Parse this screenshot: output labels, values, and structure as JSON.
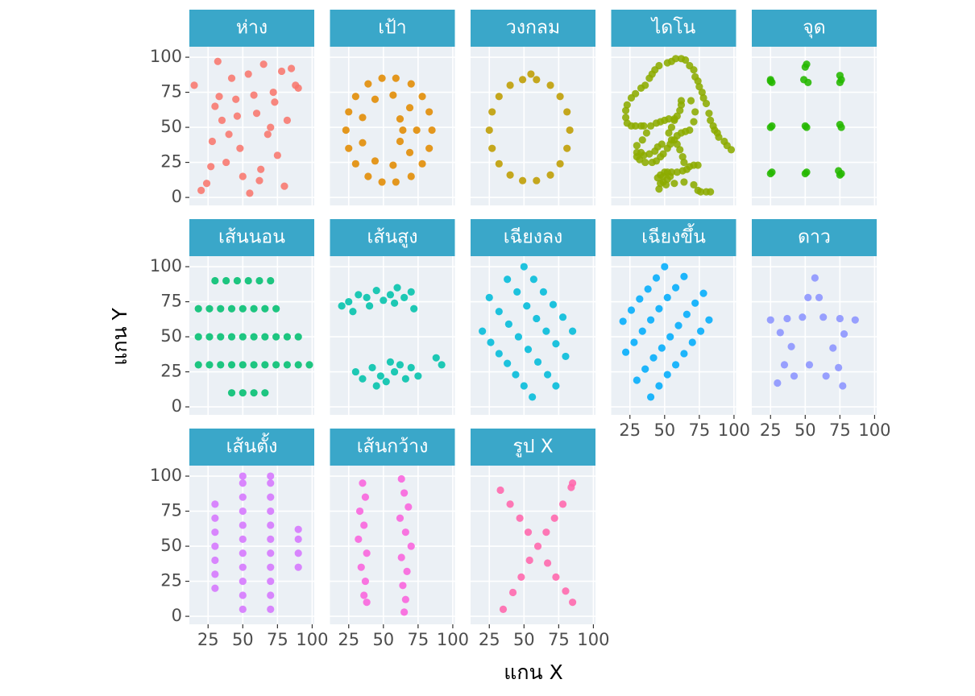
{
  "chart_data": {
    "type": "scatter",
    "facet_columns": 5,
    "x_label": "แกน X",
    "y_label": "แกน Y",
    "xlim": [
      11.5,
      101.5
    ],
    "ylim": [
      -5.7,
      107.5
    ],
    "xticks": [
      25,
      50,
      75,
      100
    ],
    "yticks": [
      0,
      25,
      50,
      75,
      100
    ],
    "grid": true,
    "series": [
      {
        "name": "ห่าง",
        "color": "#F8766D",
        "x": [
          32,
          54,
          20,
          65,
          78,
          45,
          88,
          28,
          60,
          72,
          38,
          15,
          82,
          50,
          68,
          24,
          42,
          75,
          58,
          35,
          90,
          63,
          30,
          48,
          80,
          70,
          27,
          55,
          40,
          85,
          33,
          62,
          46,
          73
        ],
        "values": [
          97,
          88,
          5,
          95,
          90,
          70,
          80,
          40,
          60,
          75,
          25,
          80,
          55,
          15,
          45,
          10,
          85,
          30,
          73,
          55,
          78,
          20,
          65,
          35,
          8,
          50,
          22,
          3,
          45,
          92,
          72,
          12,
          58,
          68
        ]
      },
      {
        "name": "เป้า",
        "color": "#E18A00",
        "x": [
          85,
          83,
          78,
          70,
          59,
          49,
          39,
          30,
          25,
          23,
          25,
          30,
          39,
          49,
          59,
          70,
          78,
          83,
          74,
          69,
          57,
          44,
          35,
          35,
          44,
          57,
          69,
          62,
          64,
          62
        ],
        "values": [
          48,
          61,
          72,
          81,
          85,
          85,
          81,
          72,
          61,
          48,
          35,
          24,
          15,
          11,
          11,
          15,
          24,
          35,
          48,
          64,
          73,
          70,
          57,
          39,
          26,
          23,
          32,
          56,
          48,
          40
        ]
      },
      {
        "name": "วงกลม",
        "color": "#BE9C00",
        "x": [
          83,
          81,
          76,
          69,
          59,
          49,
          40,
          32,
          27,
          25,
          27,
          32,
          40,
          49,
          59,
          69,
          76,
          81,
          55
        ],
        "values": [
          48,
          61,
          72,
          80,
          84,
          84,
          80,
          72,
          61,
          48,
          35,
          24,
          16,
          12,
          12,
          16,
          24,
          35,
          88
        ]
      },
      {
        "name": "ไดโน",
        "color": "#8CAB00",
        "x": [
          55,
          52,
          46,
          43,
          41,
          39,
          36,
          33,
          29,
          26,
          23,
          22,
          22,
          23,
          26,
          29,
          33,
          35,
          40,
          44,
          47,
          50,
          53,
          57,
          59,
          61,
          62,
          62,
          57,
          55,
          53,
          48,
          45,
          43,
          39,
          35,
          33,
          30,
          34,
          37,
          30,
          30,
          32,
          36,
          41,
          44,
          47,
          49,
          52,
          54,
          55,
          59,
          62,
          65,
          68,
          71,
          72,
          69,
          58,
          62,
          65,
          68,
          71,
          72,
          74,
          75,
          77,
          78,
          80,
          82,
          83,
          85,
          86,
          88,
          89,
          93,
          95,
          98,
          57,
          59,
          61,
          63,
          64,
          74,
          71,
          68,
          66,
          63,
          59,
          55,
          52,
          50,
          47,
          45,
          49,
          54,
          52,
          49,
          47,
          46,
          51,
          57,
          64,
          71,
          74,
          76,
          80,
          83
        ],
        "values": [
          97,
          96,
          94,
          91,
          88,
          85,
          80,
          78,
          74,
          71,
          66,
          62,
          57,
          53,
          51,
          51,
          51,
          51,
          51,
          53,
          54,
          55,
          56,
          56,
          58,
          62,
          66,
          69,
          55,
          50,
          46,
          38,
          36,
          33,
          31,
          30,
          32,
          37,
          41,
          46,
          32,
          29,
          27,
          25,
          25,
          26,
          29,
          31,
          35,
          38,
          41,
          44,
          46,
          47,
          48,
          54,
          61,
          69,
          99,
          99,
          98,
          94,
          91,
          86,
          83,
          79,
          75,
          71,
          67,
          60,
          55,
          51,
          48,
          46,
          43,
          40,
          37,
          34,
          41,
          38,
          34,
          29,
          25,
          23,
          23,
          22,
          20,
          19,
          18,
          18,
          18,
          18,
          16,
          14,
          15,
          15,
          13,
          11,
          10,
          6,
          9,
          10,
          11,
          9,
          5,
          4,
          4,
          4
        ]
      },
      {
        "name": "จุด",
        "color": "#24B700",
        "x": [
          25,
          26,
          25,
          50,
          51,
          52,
          49,
          75,
          76,
          75,
          25,
          26,
          50,
          51,
          75,
          76,
          25,
          26,
          50,
          51,
          75,
          76,
          74
        ],
        "values": [
          83,
          82,
          84,
          93,
          95,
          82,
          84,
          87,
          84,
          82,
          50,
          51,
          51,
          50,
          52,
          50,
          17,
          18,
          17,
          18,
          16,
          17,
          19
        ]
      },
      {
        "name": "เส้นนอน",
        "color": "#00BE70",
        "x": [
          30,
          38,
          46,
          54,
          62,
          70,
          18,
          26,
          34,
          42,
          50,
          58,
          66,
          74,
          18,
          26,
          34,
          42,
          50,
          58,
          66,
          74,
          82,
          90,
          18,
          26,
          34,
          42,
          50,
          58,
          66,
          74,
          82,
          90,
          98,
          42,
          50,
          58,
          66
        ],
        "values": [
          90,
          90,
          90,
          90,
          90,
          90,
          70,
          70,
          70,
          70,
          70,
          70,
          70,
          70,
          50,
          50,
          50,
          50,
          50,
          50,
          50,
          50,
          50,
          50,
          30,
          30,
          30,
          30,
          30,
          30,
          30,
          30,
          30,
          30,
          30,
          10,
          10,
          10,
          10
        ]
      },
      {
        "name": "เส้นสูง",
        "color": "#00C1AB",
        "x": [
          20,
          25,
          32,
          38,
          45,
          50,
          55,
          60,
          65,
          70,
          72,
          28,
          40,
          58,
          30,
          35,
          42,
          48,
          52,
          58,
          62,
          66,
          70,
          75,
          88,
          92,
          45,
          55
        ],
        "values": [
          72,
          75,
          80,
          78,
          83,
          76,
          80,
          85,
          78,
          82,
          70,
          68,
          72,
          74,
          25,
          20,
          28,
          22,
          18,
          25,
          30,
          20,
          28,
          22,
          35,
          30,
          15,
          32
        ]
      },
      {
        "name": "เฉียงลง",
        "color": "#00BBDA",
        "x": [
          20,
          26,
          32,
          38,
          44,
          50,
          56,
          25,
          32,
          39,
          46,
          53,
          60,
          67,
          73,
          38,
          45,
          52,
          59,
          66,
          73,
          80,
          50,
          57,
          64,
          71,
          78,
          85
        ],
        "values": [
          54,
          46,
          38,
          31,
          23,
          15,
          7,
          78,
          68,
          59,
          50,
          41,
          32,
          23,
          15,
          91,
          82,
          72,
          63,
          54,
          45,
          36,
          100,
          91,
          82,
          73,
          64,
          54
        ]
      },
      {
        "name": "เฉียงขึ้น",
        "color": "#00ACFC",
        "x": [
          40,
          46,
          52,
          58,
          64,
          70,
          76,
          82,
          30,
          36,
          42,
          48,
          54,
          60,
          66,
          72,
          78,
          22,
          28,
          34,
          40,
          46,
          52,
          58,
          64,
          20,
          26,
          32,
          38,
          44,
          50
        ],
        "values": [
          7,
          15,
          23,
          30,
          38,
          46,
          54,
          62,
          19,
          27,
          35,
          42,
          50,
          58,
          66,
          74,
          81,
          39,
          46,
          54,
          62,
          70,
          78,
          85,
          93,
          61,
          69,
          77,
          84,
          92,
          100
        ]
      },
      {
        "name": "ดาว",
        "color": "#8B93FF",
        "x": [
          57,
          60,
          63,
          75,
          86,
          78,
          70,
          74,
          77,
          65,
          53,
          42,
          30,
          35,
          40,
          32,
          25,
          37,
          48,
          52
        ],
        "values": [
          92,
          78,
          64,
          63,
          62,
          52,
          42,
          28,
          15,
          22,
          30,
          22,
          17,
          30,
          43,
          53,
          62,
          63,
          64,
          78
        ]
      },
      {
        "name": "เส้นตั้ง",
        "color": "#D575FE",
        "x": [
          30,
          30,
          30,
          30,
          30,
          30,
          30,
          50,
          50,
          50,
          50,
          50,
          50,
          50,
          50,
          50,
          50,
          50,
          70,
          70,
          70,
          70,
          70,
          70,
          70,
          70,
          70,
          70,
          70,
          90,
          90,
          90,
          90
        ],
        "values": [
          20,
          30,
          40,
          50,
          60,
          70,
          80,
          5,
          15,
          25,
          35,
          45,
          55,
          65,
          75,
          85,
          95,
          100,
          5,
          15,
          25,
          35,
          45,
          55,
          65,
          75,
          85,
          95,
          100,
          35,
          45,
          55,
          62
        ]
      },
      {
        "name": "เส้นกว้าง",
        "color": "#F962DD",
        "x": [
          35,
          37,
          33,
          36,
          32,
          38,
          34,
          37,
          36,
          38,
          63,
          65,
          68,
          62,
          66,
          70,
          63,
          67,
          64,
          66,
          65
        ],
        "values": [
          95,
          85,
          75,
          65,
          55,
          45,
          35,
          25,
          15,
          10,
          98,
          88,
          78,
          70,
          60,
          50,
          42,
          32,
          22,
          12,
          3
        ]
      },
      {
        "name": "รูป X",
        "color": "#FF65AC",
        "x": [
          33,
          40,
          47,
          53,
          60,
          67,
          73,
          80,
          85,
          35,
          42,
          48,
          54,
          66,
          72,
          78,
          84,
          85
        ],
        "values": [
          90,
          80,
          70,
          60,
          50,
          38,
          28,
          18,
          10,
          5,
          17,
          28,
          40,
          60,
          70,
          80,
          92,
          95
        ]
      }
    ]
  }
}
